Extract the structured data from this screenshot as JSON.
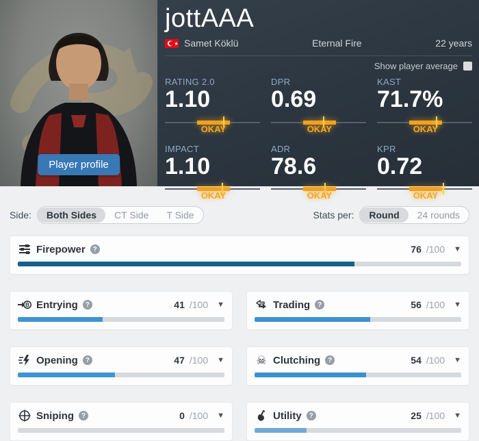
{
  "header": {
    "nickname": "jottAAA",
    "real_name": "Samet Köklü",
    "flag": "turkey-flag",
    "team": "Eternal Fire",
    "age": "22 years",
    "show_average_label": "Show player average",
    "player_profile_button": "Player profile"
  },
  "summary_stats": [
    {
      "label": "RATING 2.0",
      "value": "1.10",
      "badge": "OKAY",
      "marker_pct": 61
    },
    {
      "label": "DPR",
      "value": "0.69",
      "badge": "OKAY",
      "marker_pct": 55
    },
    {
      "label": "KAST",
      "value": "71.7%",
      "badge": "OKAY",
      "marker_pct": 62
    },
    {
      "label": "IMPACT",
      "value": "1.10",
      "badge": "OKAY",
      "marker_pct": 60
    },
    {
      "label": "ADR",
      "value": "78.6",
      "badge": "OKAY",
      "marker_pct": 56
    },
    {
      "label": "KPR",
      "value": "0.72",
      "badge": "OKAY",
      "marker_pct": 69
    }
  ],
  "filters": {
    "side_label": "Side:",
    "side_options": {
      "both": "Both Sides",
      "ct": "CT Side",
      "t": "T Side"
    },
    "side_selected": "Both Sides",
    "stats_per_label": "Stats per:",
    "stats_per_options": {
      "round": "Round",
      "rounds": "24 rounds"
    },
    "stats_per_selected": "Round"
  },
  "categories": [
    {
      "label": "Firepower",
      "value": "76",
      "max": "/100",
      "icon": "sliders-icon",
      "bar_color": "#15608c",
      "bar_pct": 76
    },
    {
      "label": "Entrying",
      "value": "41",
      "max": "/100",
      "icon": "entry-icon",
      "bar_color": "#4094d0",
      "bar_pct": 41
    },
    {
      "label": "Trading",
      "value": "56",
      "max": "/100",
      "icon": "trade-icon",
      "bar_color": "#3b92cf",
      "bar_pct": 56
    },
    {
      "label": "Opening",
      "value": "47",
      "max": "/100",
      "icon": "lightning-icon",
      "bar_color": "#3f94d1",
      "bar_pct": 47
    },
    {
      "label": "Clutching",
      "value": "54",
      "max": "/100",
      "icon": "skull-icon",
      "bar_color": "#3b90cd",
      "bar_pct": 54
    },
    {
      "label": "Sniping",
      "value": "0",
      "max": "/100",
      "icon": "crosshair-icon",
      "bar_color": "#3b90cd",
      "bar_pct": 0
    },
    {
      "label": "Utility",
      "value": "25",
      "max": "/100",
      "icon": "grenade-icon",
      "bar_color": "#74a9d4",
      "bar_pct": 25
    }
  ],
  "colors": {
    "accent_orange": "#f3a11c",
    "accent_blue_button": "#3878b4",
    "header_bg": "#2d3741",
    "label_blue": "#8ea9c9",
    "page_bg": "#eef0f2"
  }
}
